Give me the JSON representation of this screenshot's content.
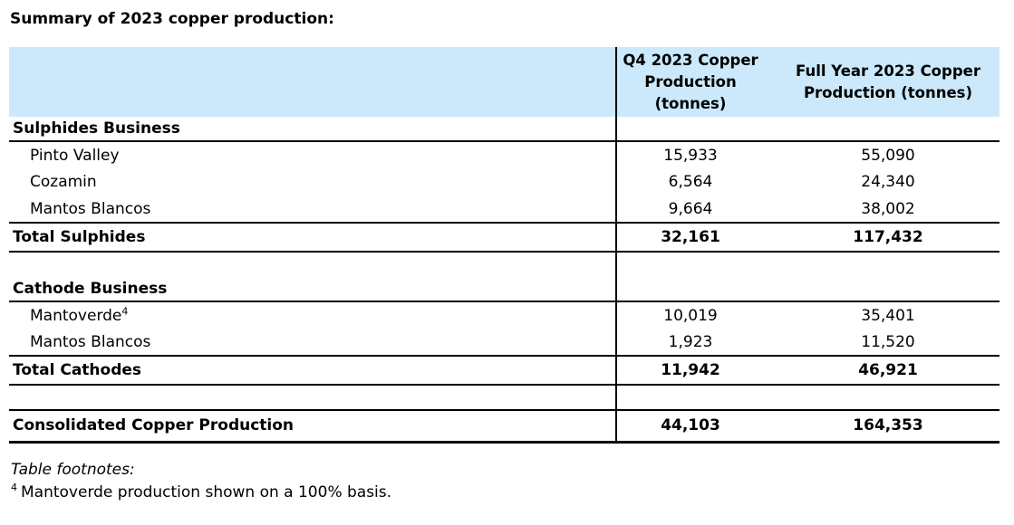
{
  "page": {
    "title": "Summary of 2023 copper production:"
  },
  "colors": {
    "header_bg": "#cbe9fb",
    "rule": "#000000",
    "text": "#000000"
  },
  "table": {
    "header": {
      "label_col": "",
      "q4_col": "Q4 2023 Copper Production (tonnes)",
      "fy_col": "Full Year 2023 Copper Production (tonnes)"
    },
    "rows": [
      {
        "type": "section",
        "label": "Sulphides Business",
        "q4": "",
        "fy": ""
      },
      {
        "type": "item",
        "label": "Pinto Valley",
        "q4": "15,933",
        "fy": "55,090"
      },
      {
        "type": "item",
        "label": "Cozamin",
        "q4": "6,564",
        "fy": "24,340"
      },
      {
        "type": "item",
        "label": "Mantos Blancos",
        "q4": "9,664",
        "fy": "38,002"
      },
      {
        "type": "total",
        "label": "Total Sulphides",
        "q4": "32,161",
        "fy": "117,432"
      },
      {
        "type": "spacer",
        "label": "",
        "q4": "",
        "fy": ""
      },
      {
        "type": "section",
        "label": "Cathode Business",
        "q4": "",
        "fy": ""
      },
      {
        "type": "item",
        "label": "Mantoverde",
        "footnote_marker": "4",
        "q4": "10,019",
        "fy": "35,401"
      },
      {
        "type": "item",
        "label": "Mantos Blancos",
        "q4": "1,923",
        "fy": "11,520"
      },
      {
        "type": "total",
        "label": "Total Cathodes",
        "q4": "11,942",
        "fy": "46,921"
      },
      {
        "type": "spacer",
        "label": "",
        "q4": "",
        "fy": ""
      },
      {
        "type": "grand_total",
        "label": "Consolidated Copper Production",
        "q4": "44,103",
        "fy": "164,353"
      }
    ]
  },
  "footnotes": {
    "heading": "Table footnotes:",
    "items": [
      {
        "marker": "4",
        "text": "Mantoverde production shown on a 100% basis."
      }
    ]
  }
}
